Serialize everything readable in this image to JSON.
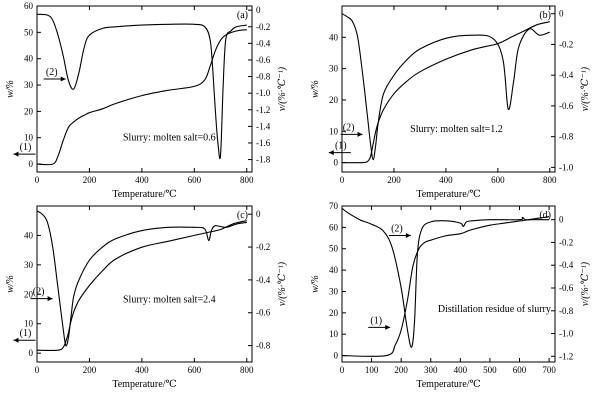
{
  "chart_data": [
    {
      "type": "line",
      "panel_label": "(a)",
      "annotation": "Slurry: molten salt=0.6",
      "xlabel": "Temperature/℃",
      "ylabel_left": "w/%",
      "ylabel_right": "v/(%·℃⁻¹)",
      "xlim": [
        0,
        820
      ],
      "ylim_left": [
        -3,
        60
      ],
      "ylim_right": [
        -1.95,
        0.05
      ],
      "xticks": [
        "0",
        "200",
        "400",
        "600",
        "800"
      ],
      "xtick_values": [
        0,
        200,
        400,
        600,
        800
      ],
      "yticks_left": [
        "0",
        "10",
        "20",
        "30",
        "40",
        "50",
        "60"
      ],
      "ytick_values_left": [
        0,
        10,
        20,
        30,
        40,
        50,
        60
      ],
      "yticks_right": [
        "0",
        "-0.2",
        "-0.4",
        "-0.6",
        "-0.8",
        "-1.0",
        "-1.2",
        "-1.4",
        "-1.6",
        "-1.8"
      ],
      "ytick_values_right": [
        0,
        -0.2,
        -0.4,
        -0.6,
        -0.8,
        -1.0,
        -1.2,
        -1.4,
        -1.6,
        -1.8
      ],
      "series": [
        {
          "name": "(1)",
          "axis": "left",
          "x": [
            0,
            60,
            80,
            100,
            120,
            140,
            160,
            180,
            200,
            250,
            300,
            400,
            500,
            600,
            640,
            660,
            680,
            700,
            720,
            760,
            800
          ],
          "y": [
            0,
            0,
            3,
            9,
            14,
            16,
            17.5,
            18.5,
            19.5,
            21,
            23,
            26,
            28,
            29.5,
            32,
            37,
            43,
            47,
            49,
            50.5,
            51
          ]
        },
        {
          "name": "(2)",
          "axis": "right",
          "x": [
            0,
            40,
            60,
            80,
            100,
            120,
            140,
            160,
            180,
            200,
            250,
            300,
            400,
            500,
            600,
            640,
            660,
            670,
            680,
            690,
            700,
            710,
            720,
            740,
            760,
            800
          ],
          "y": [
            -0.05,
            -0.06,
            -0.12,
            -0.3,
            -0.55,
            -0.85,
            -0.95,
            -0.75,
            -0.45,
            -0.3,
            -0.22,
            -0.2,
            -0.18,
            -0.17,
            -0.17,
            -0.2,
            -0.35,
            -0.7,
            -1.2,
            -1.6,
            -1.75,
            -0.9,
            -0.35,
            -0.25,
            -0.2,
            -0.18
          ]
        }
      ]
    },
    {
      "type": "line",
      "panel_label": "(b)",
      "annotation": "Slurry: molten salt=1.2",
      "xlabel": "Temperature/℃",
      "ylabel_left": "w/%",
      "ylabel_right": "v/(%·℃⁻¹)",
      "xlim": [
        0,
        820
      ],
      "ylim_left": [
        -3,
        50
      ],
      "ylim_right": [
        -1.03,
        0.05
      ],
      "xticks": [
        "0",
        "200",
        "400",
        "600",
        "800"
      ],
      "xtick_values": [
        0,
        200,
        400,
        600,
        800
      ],
      "yticks_left": [
        "0",
        "10",
        "20",
        "30",
        "40"
      ],
      "ytick_values_left": [
        0,
        10,
        20,
        30,
        40
      ],
      "yticks_right": [
        "0",
        "-0.2",
        "-0.4",
        "-0.6",
        "-0.8",
        "-1.0"
      ],
      "ytick_values_right": [
        0,
        -0.2,
        -0.4,
        -0.6,
        -0.8,
        -1.0
      ],
      "series": [
        {
          "name": "(1)",
          "axis": "left",
          "x": [
            0,
            80,
            100,
            110,
            120,
            130,
            140,
            160,
            200,
            250,
            300,
            400,
            500,
            600,
            650,
            700,
            750,
            800
          ],
          "y": [
            0,
            0,
            0.5,
            2,
            6,
            10,
            13,
            17,
            22,
            26,
            29,
            33,
            36,
            38,
            40,
            42,
            44,
            45
          ]
        },
        {
          "name": "(2)",
          "axis": "right",
          "x": [
            0,
            20,
            40,
            60,
            80,
            100,
            110,
            120,
            130,
            140,
            160,
            200,
            250,
            300,
            400,
            500,
            580,
            620,
            640,
            660,
            680,
            720,
            760,
            800
          ],
          "y": [
            0.0,
            -0.02,
            -0.05,
            -0.15,
            -0.4,
            -0.7,
            -0.85,
            -0.95,
            -0.85,
            -0.7,
            -0.52,
            -0.4,
            -0.3,
            -0.23,
            -0.16,
            -0.14,
            -0.16,
            -0.3,
            -0.62,
            -0.45,
            -0.22,
            -0.1,
            -0.14,
            -0.12
          ]
        }
      ]
    },
    {
      "type": "line",
      "panel_label": "(c)",
      "annotation": "Slurry: molten salt=2.4",
      "xlabel": "Temperature/℃",
      "ylabel_left": "w/%",
      "ylabel_right": "v/(%·℃⁻¹)",
      "xlim": [
        0,
        820
      ],
      "ylim_left": [
        -3,
        50
      ],
      "ylim_right": [
        -0.9,
        0.05
      ],
      "xticks": [
        "0",
        "200",
        "400",
        "600",
        "800"
      ],
      "xtick_values": [
        0,
        200,
        400,
        600,
        800
      ],
      "yticks_left": [
        "0",
        "10",
        "20",
        "30",
        "40"
      ],
      "ytick_values_left": [
        0,
        10,
        20,
        30,
        40
      ],
      "yticks_right": [
        "0",
        "-0.2",
        "-0.4",
        "-0.6",
        "-0.8"
      ],
      "ytick_values_right": [
        0,
        -0.2,
        -0.4,
        -0.6,
        -0.8
      ],
      "series": [
        {
          "name": "(1)",
          "axis": "left",
          "x": [
            0,
            80,
            100,
            110,
            120,
            130,
            140,
            160,
            200,
            250,
            300,
            400,
            500,
            600,
            650,
            700,
            750,
            800
          ],
          "y": [
            1,
            1,
            2,
            4,
            7,
            11,
            14,
            18,
            23,
            28,
            32,
            36,
            38,
            40,
            41,
            42,
            44,
            45
          ]
        },
        {
          "name": "(2)",
          "axis": "right",
          "x": [
            0,
            20,
            40,
            60,
            80,
            100,
            110,
            120,
            130,
            140,
            160,
            200,
            250,
            300,
            400,
            500,
            600,
            640,
            655,
            665,
            680,
            720,
            760,
            800
          ],
          "y": [
            0.02,
            0.0,
            -0.05,
            -0.2,
            -0.45,
            -0.7,
            -0.8,
            -0.75,
            -0.62,
            -0.5,
            -0.4,
            -0.28,
            -0.2,
            -0.15,
            -0.1,
            -0.08,
            -0.08,
            -0.09,
            -0.16,
            -0.1,
            -0.07,
            -0.08,
            -0.06,
            -0.05
          ]
        }
      ]
    },
    {
      "type": "line",
      "panel_label": "(d)",
      "annotation": "Distillation residue of slurry",
      "xlabel": "Temperature/℃",
      "ylabel_left": "w/%",
      "ylabel_right": "v/(%·℃⁻¹)",
      "xlim": [
        0,
        720
      ],
      "ylim_left": [
        -3,
        70
      ],
      "ylim_right": [
        -1.25,
        0.12
      ],
      "xticks": [
        "0",
        "100",
        "200",
        "300",
        "400",
        "500",
        "600",
        "700"
      ],
      "xtick_values": [
        0,
        100,
        200,
        300,
        400,
        500,
        600,
        700
      ],
      "yticks_left": [
        "0",
        "10",
        "20",
        "30",
        "40",
        "50",
        "60",
        "70"
      ],
      "ytick_values_left": [
        0,
        10,
        20,
        30,
        40,
        50,
        60,
        70
      ],
      "yticks_right": [
        "0",
        "-0.2",
        "-0.4",
        "-0.6",
        "-0.8",
        "-1.0",
        "-1.2"
      ],
      "ytick_values_right": [
        0,
        -0.2,
        -0.4,
        -0.6,
        -0.8,
        -1.0,
        -1.2
      ],
      "series": [
        {
          "name": "(1)",
          "axis": "left",
          "x": [
            0,
            150,
            180,
            200,
            220,
            240,
            260,
            280,
            300,
            350,
            400,
            420,
            440,
            500,
            550,
            600,
            650,
            700
          ],
          "y": [
            0,
            0,
            5,
            12,
            25,
            42,
            50,
            53,
            54,
            56,
            57,
            58,
            59,
            61,
            62,
            63,
            64,
            65
          ]
        },
        {
          "name": "(2)",
          "axis": "right",
          "x": [
            0,
            20,
            60,
            100,
            140,
            170,
            200,
            220,
            235,
            245,
            255,
            270,
            300,
            350,
            400,
            410,
            420,
            440,
            500,
            600,
            610,
            620,
            640,
            700
          ],
          "y": [
            0.1,
            0.06,
            0.0,
            -0.04,
            -0.1,
            -0.25,
            -0.6,
            -0.95,
            -1.12,
            -0.9,
            -0.3,
            -0.08,
            -0.02,
            -0.01,
            -0.03,
            -0.06,
            -0.02,
            -0.01,
            0.0,
            0.0,
            0.02,
            0.0,
            0.0,
            0.0
          ]
        }
      ]
    }
  ]
}
